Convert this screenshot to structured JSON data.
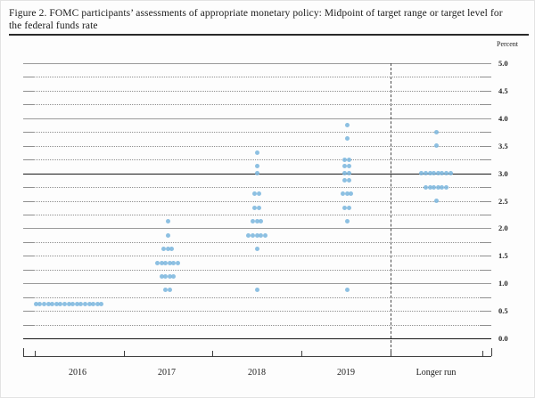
{
  "figure": {
    "title_line1": "Figure 2.  FOMC participants’ assessments of appropriate monetary policy:  Midpoint of target range or target level for",
    "title_line2": "the federal funds rate",
    "unit_label": "Percent"
  },
  "colors": {
    "dot": "#7db7de",
    "grid": "#9a9a9a",
    "emphasis_line": "#161616",
    "axis": "#3d3d3d"
  },
  "chart_data": {
    "type": "scatter",
    "title": "FOMC participants' assessments of appropriate monetary policy: Midpoint of target range or target level for the federal funds rate",
    "xlabel": "",
    "ylabel": "Percent",
    "ylim": [
      0.0,
      5.0
    ],
    "grid_step": 0.25,
    "grid_style": "integers solid; 0.0 and 3.0 dark solid; quarters and halves dotted with solid end caps",
    "legend": "none",
    "yticks": [
      {
        "value": 5.0,
        "label": "5.0"
      },
      {
        "value": 4.5,
        "label": "4.5"
      },
      {
        "value": 4.0,
        "label": "4.0"
      },
      {
        "value": 3.5,
        "label": "3.5"
      },
      {
        "value": 3.0,
        "label": "3.0"
      },
      {
        "value": 2.5,
        "label": "2.5"
      },
      {
        "value": 2.0,
        "label": "2.0"
      },
      {
        "value": 1.5,
        "label": "1.5"
      },
      {
        "value": 1.0,
        "label": "1.0"
      },
      {
        "value": 0.5,
        "label": "0.5"
      },
      {
        "value": 0.0,
        "label": "0.0"
      }
    ],
    "categories": [
      "2016",
      "2017",
      "2018",
      "2019",
      "Longer run"
    ],
    "dashed_separator_before_category": "Longer run",
    "series": [
      {
        "name": "2016",
        "dots": [
          {
            "value": 0.625,
            "count": 17
          }
        ]
      },
      {
        "name": "2017",
        "dots": [
          {
            "value": 2.125,
            "count": 1
          },
          {
            "value": 1.875,
            "count": 1
          },
          {
            "value": 1.625,
            "count": 3
          },
          {
            "value": 1.375,
            "count": 6
          },
          {
            "value": 1.125,
            "count": 4
          },
          {
            "value": 0.875,
            "count": 2
          }
        ]
      },
      {
        "name": "2018",
        "dots": [
          {
            "value": 3.375,
            "count": 1
          },
          {
            "value": 3.125,
            "count": 1
          },
          {
            "value": 3.0,
            "count": 1
          },
          {
            "value": 2.625,
            "count": 2
          },
          {
            "value": 2.375,
            "count": 2
          },
          {
            "value": 2.125,
            "count": 3
          },
          {
            "value": 1.875,
            "count": 5
          },
          {
            "value": 1.625,
            "count": 1
          },
          {
            "value": 0.875,
            "count": 1
          }
        ]
      },
      {
        "name": "2019",
        "dots": [
          {
            "value": 3.875,
            "count": 1
          },
          {
            "value": 3.625,
            "count": 1
          },
          {
            "value": 3.25,
            "count": 2
          },
          {
            "value": 3.125,
            "count": 2
          },
          {
            "value": 3.0,
            "count": 2
          },
          {
            "value": 2.875,
            "count": 2
          },
          {
            "value": 2.625,
            "count": 3
          },
          {
            "value": 2.375,
            "count": 2
          },
          {
            "value": 2.125,
            "count": 1
          },
          {
            "value": 0.875,
            "count": 1
          }
        ]
      },
      {
        "name": "Longer run",
        "dots": [
          {
            "value": 3.75,
            "count": 1
          },
          {
            "value": 3.5,
            "count": 1
          },
          {
            "value": 3.0,
            "count": 8
          },
          {
            "value": 2.75,
            "count": 6
          },
          {
            "value": 2.5,
            "count": 1
          }
        ]
      }
    ]
  }
}
